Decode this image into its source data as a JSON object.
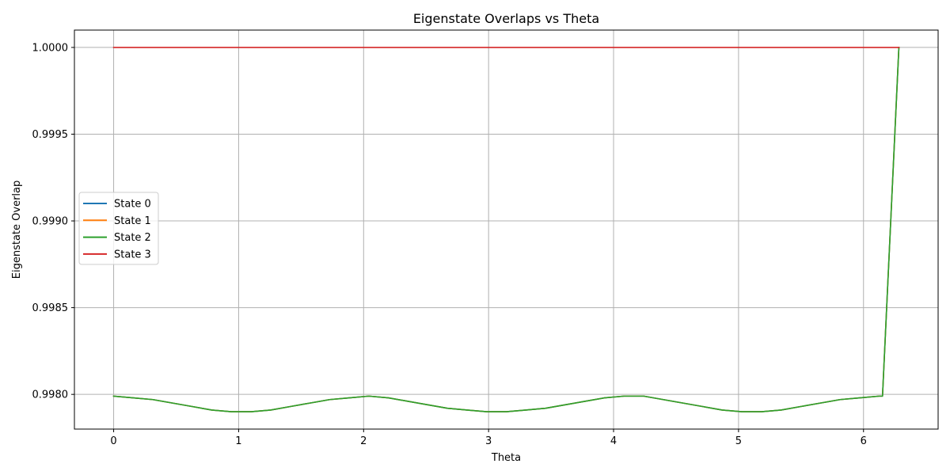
{
  "chart_data": {
    "type": "line",
    "title": "Eigenstate Overlaps vs Theta",
    "xlabel": "Theta",
    "ylabel": "Eigenstate Overlap",
    "xlim": [
      -0.314,
      6.597
    ],
    "ylim": [
      0.9978,
      1.0001
    ],
    "xticks": [
      0,
      1,
      2,
      3,
      4,
      5,
      6
    ],
    "xtick_labels": [
      "0",
      "1",
      "2",
      "3",
      "4",
      "5",
      "6"
    ],
    "yticks": [
      0.998,
      0.9985,
      0.999,
      0.9995,
      1.0
    ],
    "ytick_labels": [
      "0.9980",
      "0.9985",
      "0.9990",
      "0.9995",
      "1.0000"
    ],
    "grid": true,
    "legend_position": "center-left",
    "series": [
      {
        "name": "State 0",
        "color": "#1f77b4",
        "x": [
          0,
          0.157,
          0.314,
          0.471,
          0.628,
          0.785,
          0.942,
          1.1,
          1.257,
          1.414,
          1.571,
          1.728,
          1.885,
          2.042,
          2.199,
          2.356,
          2.513,
          2.67,
          2.827,
          2.985,
          3.142,
          3.299,
          3.456,
          3.613,
          3.77,
          3.927,
          4.084,
          4.241,
          4.398,
          4.555,
          4.712,
          4.869,
          5.027,
          5.184,
          5.341,
          5.498,
          5.655,
          5.812,
          5.969,
          6.126,
          6.152,
          6.283
        ],
        "y": [
          0.99799,
          0.99798,
          0.99797,
          0.99795,
          0.99793,
          0.99791,
          0.9979,
          0.9979,
          0.99791,
          0.99793,
          0.99795,
          0.99797,
          0.99798,
          0.99799,
          0.99798,
          0.99796,
          0.99794,
          0.99792,
          0.99791,
          0.9979,
          0.9979,
          0.99791,
          0.99792,
          0.99794,
          0.99796,
          0.99798,
          0.99799,
          0.99799,
          0.99797,
          0.99795,
          0.99793,
          0.99791,
          0.9979,
          0.9979,
          0.99791,
          0.99793,
          0.99795,
          0.99797,
          0.99798,
          0.99799,
          0.99799,
          1.0
        ]
      },
      {
        "name": "State 1",
        "color": "#ff7f0e",
        "x": [
          0,
          0.157,
          0.314,
          0.471,
          0.628,
          0.785,
          0.942,
          1.1,
          1.257,
          1.414,
          1.571,
          1.728,
          1.885,
          2.042,
          2.199,
          2.356,
          2.513,
          2.67,
          2.827,
          2.985,
          3.142,
          3.299,
          3.456,
          3.613,
          3.77,
          3.927,
          4.084,
          4.241,
          4.398,
          4.555,
          4.712,
          4.869,
          5.027,
          5.184,
          5.341,
          5.498,
          5.655,
          5.812,
          5.969,
          6.126,
          6.152,
          6.283
        ],
        "y": [
          0.99799,
          0.99798,
          0.99797,
          0.99795,
          0.99793,
          0.99791,
          0.9979,
          0.9979,
          0.99791,
          0.99793,
          0.99795,
          0.99797,
          0.99798,
          0.99799,
          0.99798,
          0.99796,
          0.99794,
          0.99792,
          0.99791,
          0.9979,
          0.9979,
          0.99791,
          0.99792,
          0.99794,
          0.99796,
          0.99798,
          0.99799,
          0.99799,
          0.99797,
          0.99795,
          0.99793,
          0.99791,
          0.9979,
          0.9979,
          0.99791,
          0.99793,
          0.99795,
          0.99797,
          0.99798,
          0.99799,
          0.99799,
          1.0
        ]
      },
      {
        "name": "State 2",
        "color": "#2ca02c",
        "x": [
          0,
          0.157,
          0.314,
          0.471,
          0.628,
          0.785,
          0.942,
          1.1,
          1.257,
          1.414,
          1.571,
          1.728,
          1.885,
          2.042,
          2.199,
          2.356,
          2.513,
          2.67,
          2.827,
          2.985,
          3.142,
          3.299,
          3.456,
          3.613,
          3.77,
          3.927,
          4.084,
          4.241,
          4.398,
          4.555,
          4.712,
          4.869,
          5.027,
          5.184,
          5.341,
          5.498,
          5.655,
          5.812,
          5.969,
          6.126,
          6.152,
          6.283
        ],
        "y": [
          0.99799,
          0.99798,
          0.99797,
          0.99795,
          0.99793,
          0.99791,
          0.9979,
          0.9979,
          0.99791,
          0.99793,
          0.99795,
          0.99797,
          0.99798,
          0.99799,
          0.99798,
          0.99796,
          0.99794,
          0.99792,
          0.99791,
          0.9979,
          0.9979,
          0.99791,
          0.99792,
          0.99794,
          0.99796,
          0.99798,
          0.99799,
          0.99799,
          0.99797,
          0.99795,
          0.99793,
          0.99791,
          0.9979,
          0.9979,
          0.99791,
          0.99793,
          0.99795,
          0.99797,
          0.99798,
          0.99799,
          0.99799,
          1.0
        ]
      },
      {
        "name": "State 3",
        "color": "#d62728",
        "x": [
          0,
          6.283
        ],
        "y": [
          1.0,
          1.0
        ]
      }
    ]
  }
}
